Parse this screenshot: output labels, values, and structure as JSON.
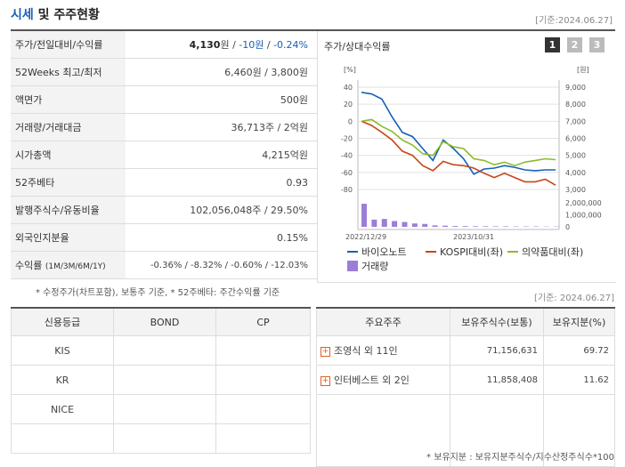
{
  "header": {
    "title_blue": "시세",
    "title_rest": " 및 주주현황",
    "date": "[기준:2024.06.27]"
  },
  "stats": [
    {
      "label": "주가/전일대비/수익률",
      "price": "4,130",
      "unit": "원",
      "sep1": " / ",
      "change": "-10원",
      "sep2": " / ",
      "rate": "-0.24%"
    },
    {
      "label": "52Weeks 최고/최저",
      "value": "6,460원 / 3,800원"
    },
    {
      "label": "액면가",
      "value": "500원"
    },
    {
      "label": "거래량/거래대금",
      "value": "36,713주 / 2억원"
    },
    {
      "label": "시가총액",
      "value": "4,215억원"
    },
    {
      "label": "52주베타",
      "value": "0.93"
    },
    {
      "label": "발행주식수/유동비율",
      "value": "102,056,048주 / 29.50%"
    },
    {
      "label": "외국인지분율",
      "value": "0.15%"
    },
    {
      "label": "수익률",
      "label_sub": "(1M/3M/6M/1Y)",
      "value": "-0.36% / -8.32% / -0.60% / -12.03%"
    }
  ],
  "stats_note": "* 수정주가(차트포함), 보통주 기준, * 52주베타: 주간수익률 기준",
  "chart_data": {
    "type": "line",
    "title": "주가/상대수익률",
    "tabs": [
      "1",
      "2",
      "3"
    ],
    "left_unit": "[%]",
    "right_unit": "[원]",
    "left_ticks": [
      "40",
      "20",
      "0",
      "-20",
      "-40",
      "-60",
      "-80"
    ],
    "right_ticks": [
      "9,000",
      "8,000",
      "7,000",
      "6,000",
      "5,000",
      "4,000",
      "3,000"
    ],
    "volume_ticks": [
      "2,000,000",
      "1,000,000",
      "0"
    ],
    "x_labels": [
      "2022/12/29",
      "2023/10/31"
    ],
    "ylim_left": [
      -80,
      40
    ],
    "series": [
      {
        "name": "바이오노트",
        "color": "#1a5fb4",
        "values": [
          34,
          32,
          26,
          5,
          -13,
          -18,
          -32,
          -46,
          -22,
          -32,
          -44,
          -62,
          -56,
          -55,
          -52,
          -54,
          -57,
          -58,
          -57,
          -57
        ]
      },
      {
        "name": "KOSPI대비(좌)",
        "color": "#c8461a",
        "values": [
          0,
          -5,
          -13,
          -22,
          -35,
          -40,
          -52,
          -58,
          -47,
          -51,
          -52,
          -55,
          -61,
          -66,
          -61,
          -66,
          -71,
          -71,
          -68,
          -75
        ]
      },
      {
        "name": "의약품대비(좌)",
        "color": "#8cbc28",
        "values": [
          0,
          2,
          -6,
          -12,
          -22,
          -28,
          -38,
          -40,
          -24,
          -30,
          -32,
          -44,
          -46,
          -51,
          -48,
          -52,
          -48,
          -46,
          -44,
          -45
        ]
      }
    ],
    "volume": {
      "name": "거래량",
      "color": "#9b7ed6",
      "values": [
        2400000,
        750000,
        820000,
        600000,
        500000,
        350000,
        300000,
        150000,
        120000,
        80000,
        70000,
        60000,
        60000,
        50000,
        50000,
        40000,
        40000,
        40000,
        30000,
        30000
      ]
    }
  },
  "ratings": {
    "headers": [
      "신용등급",
      "BOND",
      "CP"
    ],
    "rows": [
      [
        "KIS",
        "",
        ""
      ],
      [
        "KR",
        "",
        ""
      ],
      [
        "NICE",
        "",
        ""
      ],
      [
        "",
        "",
        ""
      ]
    ]
  },
  "holders": {
    "date": "[기준: 2024.06.27]",
    "headers": [
      "주요주주",
      "보유주식수(보통)",
      "보유지분(%)"
    ],
    "rows": [
      {
        "name": "조영식 외 11인",
        "shares": "71,156,631",
        "ratio": "69.72"
      },
      {
        "name": "인터베스트 외 2인",
        "shares": "11,858,408",
        "ratio": "11.62"
      }
    ],
    "note": "* 보유지분 : 보유지분주식수/지수산정주식수*100"
  }
}
